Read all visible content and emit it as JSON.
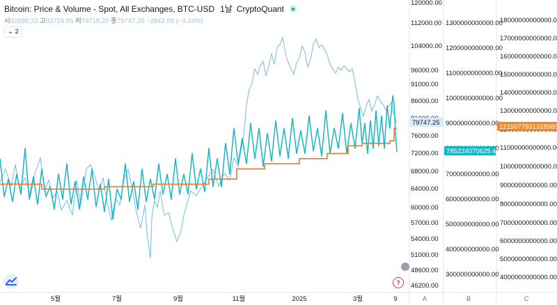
{
  "header": {
    "title": "Bitcoin: Price & Volume - Spot, All Exchanges, BTC-USD",
    "interval": "1날",
    "source": "CryptoQuant"
  },
  "ohlc": {
    "open_label": "시",
    "open_value": "82588.33",
    "high_label": "고",
    "high_value": "83719.85",
    "low_label": "저",
    "low_value": "79718.29",
    "close_label": "종",
    "close_value": "79747.25",
    "change": "−2842.09 (−3.44%)"
  },
  "collapse_count": "2",
  "help_label": "?",
  "colors": {
    "price": "#7fbfe6",
    "volume": "#17b6c4",
    "average": "#e8782c",
    "price_label_bg": "#d7ecfa",
    "volume_label_bg": "#17b6c4",
    "average_label_bg": "#f08a24",
    "help": "#d33b3b"
  },
  "chart_data": {
    "type": "line",
    "x_ticks": [
      "5월",
      "7월",
      "9월",
      "11월",
      "2025",
      "3월",
      "9"
    ],
    "scale_labels": [
      "A",
      "B",
      "C"
    ],
    "series": [
      {
        "axis": "A",
        "color": "#7fbfe6",
        "points": [
          [
            0,
            65500
          ],
          [
            8,
            68500
          ],
          [
            16,
            64500
          ],
          [
            22,
            69500
          ],
          [
            28,
            64000
          ],
          [
            36,
            66500
          ],
          [
            44,
            62500
          ],
          [
            50,
            67500
          ],
          [
            58,
            71000
          ],
          [
            64,
            63500
          ],
          [
            70,
            66000
          ],
          [
            76,
            62000
          ],
          [
            82,
            63500
          ],
          [
            88,
            59500
          ],
          [
            96,
            61500
          ],
          [
            104,
            58500
          ],
          [
            110,
            66000
          ],
          [
            116,
            60500
          ],
          [
            124,
            68500
          ],
          [
            130,
            69500
          ],
          [
            136,
            67000
          ],
          [
            142,
            63500
          ],
          [
            148,
            66500
          ],
          [
            154,
            61000
          ],
          [
            160,
            57500
          ],
          [
            166,
            62000
          ],
          [
            172,
            60500
          ],
          [
            178,
            66000
          ],
          [
            184,
            68500
          ],
          [
            190,
            64000
          ],
          [
            196,
            59000
          ],
          [
            202,
            56000
          ],
          [
            208,
            60500
          ],
          [
            212,
            54000
          ],
          [
            216,
            50500
          ],
          [
            218,
            58000
          ],
          [
            222,
            61500
          ],
          [
            226,
            60000
          ],
          [
            230,
            63500
          ],
          [
            236,
            58500
          ],
          [
            242,
            59000
          ],
          [
            248,
            56000
          ],
          [
            254,
            53500
          ],
          [
            260,
            55500
          ],
          [
            264,
            58500
          ],
          [
            268,
            60500
          ],
          [
            274,
            63500
          ],
          [
            282,
            62500
          ],
          [
            290,
            64500
          ],
          [
            298,
            66500
          ],
          [
            306,
            68500
          ],
          [
            314,
            64500
          ],
          [
            322,
            67500
          ],
          [
            330,
            66000
          ],
          [
            336,
            71000
          ],
          [
            342,
            69000
          ],
          [
            346,
            72500
          ],
          [
            350,
            76000
          ],
          [
            354,
            85000
          ],
          [
            358,
            89500
          ],
          [
            362,
            91500
          ],
          [
            366,
            96500
          ],
          [
            370,
            94500
          ],
          [
            374,
            97500
          ],
          [
            378,
            99000
          ],
          [
            382,
            94000
          ],
          [
            386,
            97500
          ],
          [
            390,
            101500
          ],
          [
            394,
            98000
          ],
          [
            398,
            103500
          ],
          [
            402,
            104500
          ],
          [
            406,
            107000
          ],
          [
            410,
            101500
          ],
          [
            414,
            98500
          ],
          [
            418,
            96500
          ],
          [
            422,
            94500
          ],
          [
            426,
            98500
          ],
          [
            430,
            100000
          ],
          [
            434,
            104000
          ],
          [
            438,
            102000
          ],
          [
            442,
            97000
          ],
          [
            446,
            99500
          ],
          [
            450,
            104500
          ],
          [
            454,
            106500
          ],
          [
            458,
            103500
          ],
          [
            462,
            104500
          ],
          [
            466,
            103000
          ],
          [
            470,
            101000
          ],
          [
            474,
            98000
          ],
          [
            478,
            96500
          ],
          [
            482,
            95000
          ],
          [
            486,
            97000
          ],
          [
            490,
            96000
          ],
          [
            494,
            97500
          ],
          [
            498,
            96500
          ],
          [
            502,
            95500
          ],
          [
            506,
            96500
          ],
          [
            510,
            91500
          ],
          [
            514,
            86500
          ],
          [
            518,
            84000
          ],
          [
            522,
            81500
          ],
          [
            526,
            84500
          ],
          [
            530,
            86500
          ],
          [
            534,
            83000
          ],
          [
            538,
            85000
          ],
          [
            542,
            87500
          ],
          [
            546,
            86000
          ],
          [
            550,
            85000
          ],
          [
            554,
            83500
          ],
          [
            558,
            84500
          ],
          [
            562,
            85500
          ],
          [
            566,
            82000
          ],
          [
            570,
            79747
          ]
        ]
      },
      {
        "axis": "B",
        "color": "#17b6c4",
        "points": [
          [
            0,
            760000000000
          ],
          [
            6,
            610000000000
          ],
          [
            12,
            680000000000
          ],
          [
            18,
            590000000000
          ],
          [
            24,
            700000000000
          ],
          [
            30,
            620000000000
          ],
          [
            36,
            800000000000
          ],
          [
            42,
            600000000000
          ],
          [
            48,
            690000000000
          ],
          [
            54,
            580000000000
          ],
          [
            60,
            720000000000
          ],
          [
            66,
            610000000000
          ],
          [
            72,
            650000000000
          ],
          [
            78,
            560000000000
          ],
          [
            84,
            700000000000
          ],
          [
            90,
            600000000000
          ],
          [
            96,
            740000000000
          ],
          [
            102,
            580000000000
          ],
          [
            108,
            670000000000
          ],
          [
            114,
            560000000000
          ],
          [
            120,
            690000000000
          ],
          [
            126,
            600000000000
          ],
          [
            132,
            720000000000
          ],
          [
            138,
            570000000000
          ],
          [
            144,
            660000000000
          ],
          [
            150,
            550000000000
          ],
          [
            156,
            680000000000
          ],
          [
            162,
            520000000000
          ],
          [
            168,
            640000000000
          ],
          [
            174,
            600000000000
          ],
          [
            180,
            740000000000
          ],
          [
            186,
            590000000000
          ],
          [
            192,
            670000000000
          ],
          [
            198,
            560000000000
          ],
          [
            204,
            720000000000
          ],
          [
            210,
            590000000000
          ],
          [
            216,
            680000000000
          ],
          [
            222,
            600000000000
          ],
          [
            228,
            740000000000
          ],
          [
            234,
            620000000000
          ],
          [
            240,
            700000000000
          ],
          [
            246,
            600000000000
          ],
          [
            252,
            760000000000
          ],
          [
            258,
            620000000000
          ],
          [
            264,
            700000000000
          ],
          [
            270,
            620000000000
          ],
          [
            276,
            780000000000
          ],
          [
            282,
            640000000000
          ],
          [
            288,
            720000000000
          ],
          [
            294,
            630000000000
          ],
          [
            300,
            800000000000
          ],
          [
            306,
            650000000000
          ],
          [
            312,
            760000000000
          ],
          [
            318,
            650000000000
          ],
          [
            324,
            820000000000
          ],
          [
            330,
            700000000000
          ],
          [
            336,
            880000000000
          ],
          [
            342,
            740000000000
          ],
          [
            348,
            840000000000
          ],
          [
            354,
            740000000000
          ],
          [
            360,
            900000000000
          ],
          [
            366,
            760000000000
          ],
          [
            372,
            880000000000
          ],
          [
            378,
            730000000000
          ],
          [
            384,
            860000000000
          ],
          [
            390,
            750000000000
          ],
          [
            396,
            910000000000
          ],
          [
            402,
            770000000000
          ],
          [
            408,
            880000000000
          ],
          [
            414,
            760000000000
          ],
          [
            420,
            920000000000
          ],
          [
            426,
            780000000000
          ],
          [
            432,
            870000000000
          ],
          [
            438,
            780000000000
          ],
          [
            444,
            930000000000
          ],
          [
            450,
            790000000000
          ],
          [
            456,
            880000000000
          ],
          [
            462,
            770000000000
          ],
          [
            468,
            950000000000
          ],
          [
            474,
            780000000000
          ],
          [
            480,
            880000000000
          ],
          [
            486,
            800000000000
          ],
          [
            492,
            940000000000
          ],
          [
            498,
            780000000000
          ],
          [
            504,
            900000000000
          ],
          [
            510,
            800000000000
          ],
          [
            516,
            960000000000
          ],
          [
            520,
            820000000000
          ],
          [
            524,
            900000000000
          ],
          [
            528,
            780000000000
          ],
          [
            532,
            910000000000
          ],
          [
            536,
            800000000000
          ],
          [
            540,
            950000000000
          ],
          [
            544,
            810000000000
          ],
          [
            548,
            930000000000
          ],
          [
            552,
            800000000000
          ],
          [
            556,
            970000000000
          ],
          [
            560,
            880000000000
          ],
          [
            564,
            1010000000000
          ],
          [
            566,
            980000000000
          ],
          [
            568,
            860000000000
          ],
          [
            570,
            785224070629
          ]
        ]
      },
      {
        "axis": "B",
        "color": "#e8782c",
        "points": [
          [
            0,
            660000000000
          ],
          [
            60,
            660000000000
          ],
          [
            60,
            640000000000
          ],
          [
            150,
            640000000000
          ],
          [
            150,
            650000000000
          ],
          [
            220,
            650000000000
          ],
          [
            220,
            660000000000
          ],
          [
            300,
            660000000000
          ],
          [
            300,
            680000000000
          ],
          [
            340,
            680000000000
          ],
          [
            340,
            720000000000
          ],
          [
            380,
            720000000000
          ],
          [
            380,
            740000000000
          ],
          [
            430,
            740000000000
          ],
          [
            430,
            760000000000
          ],
          [
            470,
            760000000000
          ],
          [
            470,
            780000000000
          ],
          [
            500,
            780000000000
          ],
          [
            500,
            810000000000
          ],
          [
            520,
            810000000000
          ],
          [
            520,
            820000000000
          ],
          [
            560,
            820000000000
          ],
          [
            560,
            830000000000
          ],
          [
            566,
            830000000000
          ],
          [
            566,
            880000000000
          ],
          [
            570,
            880000000000
          ]
        ]
      }
    ],
    "axes": [
      {
        "id": "A",
        "ticks": [
          "120000.00",
          "112000.00",
          "104000.00",
          "96000.00",
          "91000.00",
          "86000.00",
          "81000.00",
          "76000.00",
          "72000.00",
          "68000.00",
          "64000.00",
          "60000.00",
          "57000.00",
          "54000.00",
          "51000.00",
          "48600.00",
          "46200.00"
        ],
        "last_value_label": "79747.25"
      },
      {
        "id": "B",
        "ticks": [
          "1300000000000.00",
          "1200000000000.00",
          "1100000000000.00",
          "1000000000000.00",
          "900000000000.00",
          "800000000000.00",
          "700000000000.00",
          "600000000000.00",
          "500000000000.00",
          "400000000000.00",
          "300000000000.00"
        ],
        "last_value_label": "785224070629.43"
      },
      {
        "id": "C",
        "ticks": [
          "18000000000000.00",
          "17000000000000.00",
          "16000000000000.00",
          "15000000000000.00",
          "14000000000000.00",
          "13000000000000.00",
          "12000000000000.00",
          "11000000000000.00",
          "10000000000000.00",
          "9000000000000.00",
          "8000000000000.00",
          "7000000000000.00",
          "6000000000000.00",
          "5000000000000.00",
          "4000000000000.00"
        ],
        "last_value_label": "12150779313189898.10"
      }
    ]
  }
}
